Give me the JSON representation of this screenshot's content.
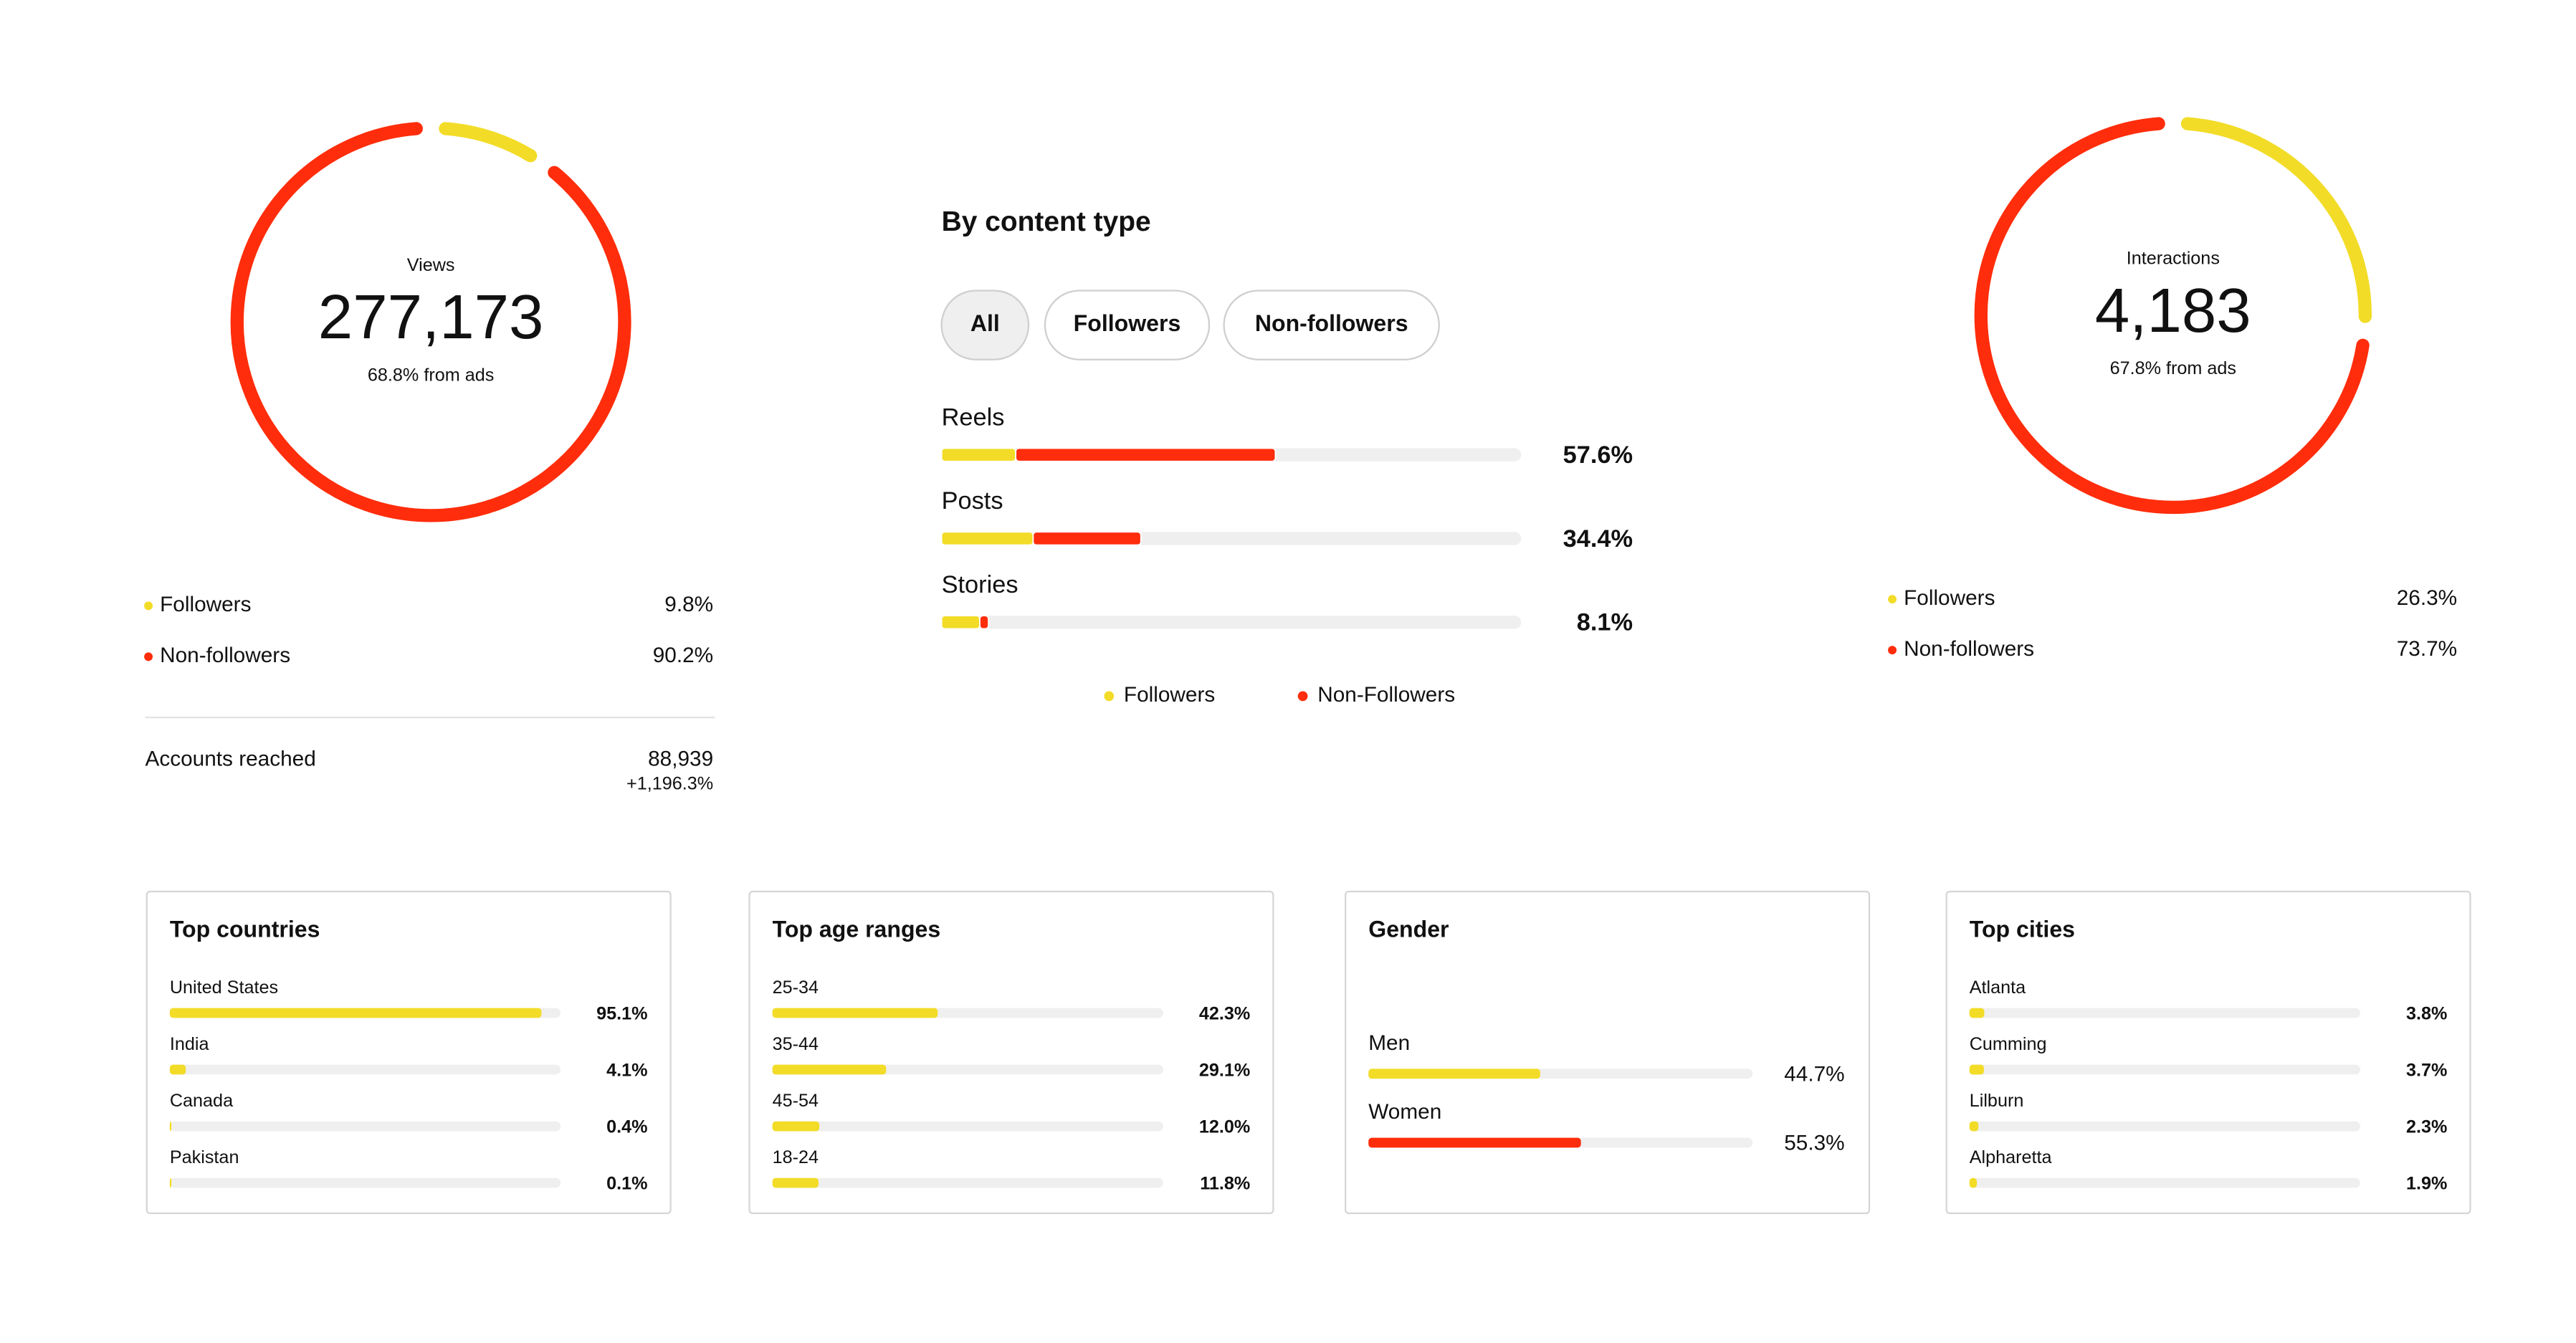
{
  "views": {
    "label": "Views",
    "total": "277,173",
    "ads_note": "68.8% from ads",
    "breakdown": [
      {
        "name": "Followers",
        "color": "#f2dc27",
        "value": 9.8,
        "value_label": "9.8%"
      },
      {
        "name": "Non-followers",
        "color": "#ff2d0b",
        "value": 90.2,
        "value_label": "90.2%"
      }
    ],
    "accounts_reached": {
      "label": "Accounts reached",
      "value": "88,939",
      "change": "+1,196.3%"
    }
  },
  "content_type": {
    "title": "By content type",
    "filters": [
      "All",
      "Followers",
      "Non-followers"
    ],
    "selected_filter": 0,
    "legend": [
      {
        "name": "Followers",
        "color": "#f2dc27"
      },
      {
        "name": "Non-Followers",
        "color": "#ff2d0b"
      }
    ],
    "rows": [
      {
        "name": "Reels",
        "total_label": "57.6%",
        "values": [
          12.8,
          44.8
        ]
      },
      {
        "name": "Posts",
        "total_label": "34.4%",
        "values": [
          15.8,
          18.6
        ]
      },
      {
        "name": "Stories",
        "total_label": "8.1%",
        "values": [
          6.6,
          1.5
        ]
      }
    ]
  },
  "interactions": {
    "label": "Interactions",
    "total": "4,183",
    "ads_note": "67.8% from ads",
    "breakdown": [
      {
        "name": "Followers",
        "color": "#f2dc27",
        "value": 26.3,
        "value_label": "26.3%"
      },
      {
        "name": "Non-followers",
        "color": "#ff2d0b",
        "value": 73.7,
        "value_label": "73.7%"
      }
    ]
  },
  "cards": [
    {
      "title": "Top countries",
      "color": "#f2dc27",
      "items": [
        {
          "name": "United States",
          "value": 95.1,
          "value_label": "95.1%"
        },
        {
          "name": "India",
          "value": 4.1,
          "value_label": "4.1%"
        },
        {
          "name": "Canada",
          "value": 0.4,
          "value_label": "0.4%"
        },
        {
          "name": "Pakistan",
          "value": 0.1,
          "value_label": "0.1%"
        }
      ]
    },
    {
      "title": "Top age ranges",
      "color": "#f2dc27",
      "items": [
        {
          "name": "25-34",
          "value": 42.3,
          "value_label": "42.3%"
        },
        {
          "name": "35-44",
          "value": 29.1,
          "value_label": "29.1%"
        },
        {
          "name": "45-54",
          "value": 12.0,
          "value_label": "12.0%"
        },
        {
          "name": "18-24",
          "value": 11.8,
          "value_label": "11.8%"
        }
      ]
    },
    {
      "title": "Gender",
      "items": [
        {
          "name": "Men",
          "color": "#f2dc27",
          "value": 44.7,
          "value_label": "44.7%"
        },
        {
          "name": "Women",
          "color": "#ff2d0b",
          "value": 55.3,
          "value_label": "55.3%"
        }
      ]
    },
    {
      "title": "Top cities",
      "color": "#f2dc27",
      "items": [
        {
          "name": "Atlanta",
          "value": 3.8,
          "value_label": "3.8%"
        },
        {
          "name": "Cumming",
          "value": 3.7,
          "value_label": "3.7%"
        },
        {
          "name": "Lilburn",
          "value": 2.3,
          "value_label": "2.3%"
        },
        {
          "name": "Alpharetta",
          "value": 1.9,
          "value_label": "1.9%"
        }
      ]
    }
  ]
}
